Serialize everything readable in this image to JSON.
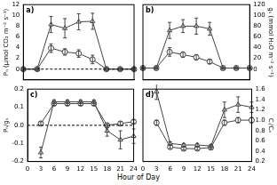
{
  "x_label": "Hour of Day",
  "chart_data": [
    {
      "type": "line",
      "title": "a)",
      "y_label": "Pₙ (μmol CO₂ m⁻² s⁻¹)",
      "tick_labels": "y",
      "x": [
        0,
        3,
        6,
        9,
        12,
        15,
        18,
        21,
        24
      ],
      "xlim": [
        0,
        24
      ],
      "xticks": [
        0,
        3,
        6,
        9,
        12,
        15,
        18,
        21,
        24
      ],
      "ylim": [
        -2,
        12
      ],
      "yticks": [
        0,
        2,
        4,
        6,
        8,
        10,
        12
      ],
      "grid": false,
      "series": [
        {
          "color": "#000000",
          "marker": "none",
          "line_style": "dashed",
          "values": [
            0,
            0,
            0,
            0,
            0,
            0,
            0,
            0,
            0
          ]
        },
        {
          "color": "#444444",
          "marker": "triangle",
          "line_style": "solid",
          "values": [
            0,
            0,
            8.3,
            7.6,
            8.8,
            8.9,
            0,
            0,
            0
          ],
          "errors": [
            0.2,
            0.2,
            1.5,
            1.8,
            1.5,
            1.5,
            0.2,
            0.2,
            0.2
          ]
        },
        {
          "color": "#444444",
          "marker": "circle",
          "line_style": "solid",
          "values": [
            0,
            0,
            3.9,
            3.2,
            2.9,
            1.8,
            0,
            0,
            0
          ],
          "errors": [
            0.2,
            0.2,
            0.8,
            0.6,
            0.7,
            0.8,
            0.2,
            0.2,
            0.2
          ]
        }
      ]
    },
    {
      "type": "line",
      "title": "b)",
      "y_label": "gₛ (mmol H₂O m⁻² s⁻¹)",
      "tick_labels": "y",
      "y_axis_side": "right",
      "x": [
        0,
        3,
        6,
        9,
        12,
        15,
        18,
        21,
        24
      ],
      "xlim": [
        0,
        24
      ],
      "xticks": [
        0,
        3,
        6,
        9,
        12,
        15,
        18,
        21,
        24
      ],
      "ylim": [
        -20,
        120
      ],
      "yticks": [
        0,
        20,
        40,
        60,
        80,
        100,
        120
      ],
      "grid": false,
      "series": [
        {
          "color": "#444444",
          "marker": "triangle",
          "line_style": "solid",
          "values": [
            2,
            2,
            72,
            80,
            80,
            75,
            2,
            2,
            2
          ],
          "errors": [
            1,
            1,
            15,
            12,
            15,
            12,
            1,
            1,
            1
          ]
        },
        {
          "color": "#444444",
          "marker": "circle",
          "line_style": "solid",
          "values": [
            2,
            2,
            32,
            27,
            22,
            14,
            2,
            2,
            2
          ],
          "errors": [
            1,
            1,
            8,
            5,
            5,
            4,
            1,
            1,
            1
          ]
        }
      ]
    },
    {
      "type": "line",
      "title": "c)",
      "y_label": "Pₙ/gₛ",
      "x": [
        0,
        3,
        6,
        9,
        12,
        15,
        18,
        21,
        24
      ],
      "xlim": [
        0,
        24
      ],
      "xticks": [
        0,
        3,
        6,
        9,
        12,
        15,
        18,
        21,
        24
      ],
      "ylim": [
        -0.2,
        0.2
      ],
      "yticks": [
        -0.2,
        -0.1,
        {
          "value": 0,
          "label": "0.0"
        },
        0.1,
        0.2
      ],
      "grid": false,
      "series": [
        {
          "color": "#000000",
          "marker": "none",
          "line_style": "dashed",
          "values": [
            0,
            0,
            0,
            0,
            0,
            0,
            0,
            0,
            0
          ]
        },
        {
          "color": "#444444",
          "marker": "triangle",
          "line_style": "solid",
          "values": [
            null,
            -0.15,
            0.13,
            0.13,
            0.13,
            0.13,
            -0.03,
            -0.08,
            -0.06
          ],
          "errors": [
            null,
            0.03,
            0.01,
            0.01,
            0.01,
            0.01,
            0.03,
            0.05,
            0.04
          ]
        },
        {
          "color": "#444444",
          "marker": "circle",
          "line_style": "solid",
          "values": [
            null,
            0.01,
            0.12,
            0.12,
            0.12,
            0.12,
            0.0,
            0.01,
            0.02
          ],
          "errors": [
            null,
            0.01,
            0.01,
            0.01,
            0.01,
            0.01,
            0.01,
            0.01,
            0.01
          ]
        }
      ]
    },
    {
      "type": "line",
      "title": "d)",
      "y_label": "Cᵢ/Cₐ",
      "y_axis_side": "right",
      "x": [
        0,
        3,
        6,
        9,
        12,
        15,
        18,
        21,
        24
      ],
      "xlim": [
        0,
        24
      ],
      "xticks": [
        0,
        3,
        6,
        9,
        12,
        15,
        18,
        21,
        24
      ],
      "ylim": [
        0.2,
        1.6
      ],
      "yticks": [
        0.2,
        0.4,
        0.6,
        0.8,
        {
          "value": 1,
          "label": "1.0"
        },
        1.2,
        1.4,
        1.6
      ],
      "grid": false,
      "series": [
        {
          "color": "#444444",
          "marker": "triangle",
          "line_style": "solid",
          "values": [
            null,
            1.55,
            0.55,
            0.52,
            0.52,
            0.5,
            1.2,
            1.3,
            1.25
          ],
          "errors": [
            null,
            0.15,
            0.03,
            0.03,
            0.03,
            0.03,
            0.15,
            0.15,
            0.1
          ]
        },
        {
          "color": "#444444",
          "marker": "circle",
          "line_style": "solid",
          "values": [
            null,
            0.95,
            0.48,
            0.45,
            0.45,
            0.47,
            0.95,
            1.0,
            1.0
          ],
          "errors": [
            null,
            0.05,
            0.03,
            0.03,
            0.03,
            0.03,
            0.05,
            0.05,
            0.05
          ]
        }
      ]
    }
  ]
}
